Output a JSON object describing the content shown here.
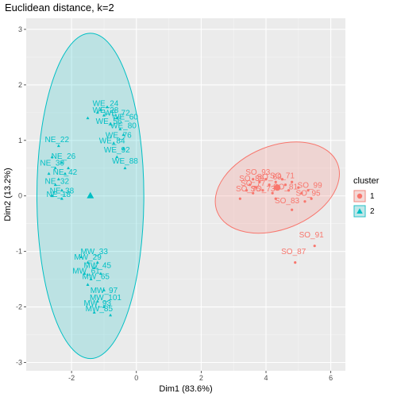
{
  "chart_data": {
    "type": "scatter",
    "title": "Euclidean distance, k=2",
    "xlabel": "Dim1 (83.6%)",
    "ylabel": "Dim2 (13.2%)",
    "xlim": [
      -3.4,
      6.45
    ],
    "ylim": [
      -3.15,
      3.2
    ],
    "xticks": [
      -2,
      0,
      2,
      4,
      6
    ],
    "yticks": [
      -3,
      -2,
      -1,
      0,
      1,
      2,
      3
    ],
    "grid": true,
    "legend_position": "right",
    "legend_title": "cluster",
    "colors": {
      "1": "#F8766D",
      "2": "#00BFC4"
    },
    "series": [
      {
        "name": "1",
        "shape": "circle",
        "ellipse": {
          "cx": 4.35,
          "cy": 0.15,
          "rx": 2.0,
          "ry": 0.75,
          "angle_deg": -22
        },
        "centroid": [
          4.35,
          0.15
        ],
        "points": [
          {
            "x": 3.2,
            "y": -0.05
          },
          {
            "x": 3.4,
            "y": 0.1
          },
          {
            "x": 3.5,
            "y": 0.2
          },
          {
            "x": 3.6,
            "y": 0.3
          },
          {
            "x": 3.7,
            "y": 0.15
          },
          {
            "x": 3.8,
            "y": 0.25
          },
          {
            "x": 3.9,
            "y": 0.1
          },
          {
            "x": 4.0,
            "y": 0.3
          },
          {
            "x": 4.1,
            "y": 0.2
          },
          {
            "x": 4.2,
            "y": 0.05
          },
          {
            "x": 4.3,
            "y": 0.25
          },
          {
            "x": 4.4,
            "y": 0.15
          },
          {
            "x": 4.5,
            "y": 0.3
          },
          {
            "x": 4.6,
            "y": 0.2
          },
          {
            "x": 4.7,
            "y": 0.1
          },
          {
            "x": 4.8,
            "y": 0.25
          },
          {
            "x": 5.0,
            "y": 0.15
          },
          {
            "x": 5.1,
            "y": 0.05
          },
          {
            "x": 5.3,
            "y": 0.1
          },
          {
            "x": 5.4,
            "y": -0.05
          },
          {
            "x": 5.2,
            "y": -0.1
          },
          {
            "x": 4.3,
            "y": -0.05
          },
          {
            "x": 3.6,
            "y": 0.05
          },
          {
            "x": 4.8,
            "y": -0.25
          },
          {
            "x": 5.5,
            "y": -0.9
          },
          {
            "x": 4.9,
            "y": -1.2
          }
        ],
        "labels": [
          {
            "text": "SO_93",
            "x": 3.75,
            "y": 0.38
          },
          {
            "text": "SO_89",
            "x": 3.55,
            "y": 0.27
          },
          {
            "text": "SO_71",
            "x": 4.5,
            "y": 0.32
          },
          {
            "text": "SO_69",
            "x": 4.1,
            "y": 0.3
          },
          {
            "text": "SO_77",
            "x": 3.6,
            "y": 0.18
          },
          {
            "text": "SO_75",
            "x": 3.45,
            "y": 0.08
          },
          {
            "text": "SO_99",
            "x": 5.35,
            "y": 0.15
          },
          {
            "text": "SO_95",
            "x": 5.3,
            "y": 0.0
          },
          {
            "text": "SO_73",
            "x": 3.9,
            "y": 0.08
          },
          {
            "text": "SO_81",
            "x": 4.6,
            "y": 0.12
          },
          {
            "text": "SO_83",
            "x": 4.65,
            "y": -0.13
          },
          {
            "text": "SO_91",
            "x": 5.4,
            "y": -0.75
          },
          {
            "text": "SO_87",
            "x": 4.85,
            "y": -1.05
          }
        ]
      },
      {
        "name": "2",
        "shape": "triangle",
        "ellipse": {
          "cx": -1.42,
          "cy": 0.0,
          "rx": 1.65,
          "ry": 2.93,
          "angle_deg": 0
        },
        "centroid": [
          -1.42,
          0.0
        ],
        "points": [
          {
            "x": -2.4,
            "y": 0.9
          },
          {
            "x": -2.6,
            "y": 0.7
          },
          {
            "x": -2.5,
            "y": 0.5
          },
          {
            "x": -2.3,
            "y": 0.6
          },
          {
            "x": -2.7,
            "y": 0.4
          },
          {
            "x": -2.4,
            "y": 0.3
          },
          {
            "x": -2.2,
            "y": 0.4
          },
          {
            "x": -2.5,
            "y": 0.2
          },
          {
            "x": -2.3,
            "y": 0.1
          },
          {
            "x": -2.6,
            "y": 0.0
          },
          {
            "x": -2.3,
            "y": -0.05
          },
          {
            "x": -2.1,
            "y": 0.5
          },
          {
            "x": -1.5,
            "y": 1.4
          },
          {
            "x": -1.2,
            "y": 1.5
          },
          {
            "x": -1.0,
            "y": 1.45
          },
          {
            "x": -0.8,
            "y": 1.3
          },
          {
            "x": -0.6,
            "y": 1.4
          },
          {
            "x": -0.5,
            "y": 1.2
          },
          {
            "x": -0.4,
            "y": 1.1
          },
          {
            "x": -0.7,
            "y": 0.95
          },
          {
            "x": -0.4,
            "y": 0.85
          },
          {
            "x": -0.6,
            "y": 0.7
          },
          {
            "x": -0.35,
            "y": 0.5
          },
          {
            "x": -1.1,
            "y": 1.55
          },
          {
            "x": -0.9,
            "y": 1.6
          },
          {
            "x": -1.7,
            "y": -1.1
          },
          {
            "x": -1.5,
            "y": -1.2
          },
          {
            "x": -1.3,
            "y": -1.3
          },
          {
            "x": -1.6,
            "y": -1.4
          },
          {
            "x": -1.4,
            "y": -1.5
          },
          {
            "x": -1.2,
            "y": -1.2
          },
          {
            "x": -1.1,
            "y": -1.4
          },
          {
            "x": -1.5,
            "y": -1.6
          },
          {
            "x": -1.0,
            "y": -1.7
          },
          {
            "x": -1.2,
            "y": -1.9
          },
          {
            "x": -1.0,
            "y": -2.0
          },
          {
            "x": -1.3,
            "y": -2.1
          },
          {
            "x": -0.8,
            "y": -2.15
          }
        ],
        "labels": [
          {
            "text": "WE_24",
            "x": -0.95,
            "y": 1.62
          },
          {
            "text": "WE_28",
            "x": -0.95,
            "y": 1.5
          },
          {
            "text": "WE_72",
            "x": -0.6,
            "y": 1.45
          },
          {
            "text": "WE_60",
            "x": -0.35,
            "y": 1.38
          },
          {
            "text": "WE_56",
            "x": -0.85,
            "y": 1.3
          },
          {
            "text": "WE_80",
            "x": -0.4,
            "y": 1.22
          },
          {
            "text": "WE_76",
            "x": -0.55,
            "y": 1.05
          },
          {
            "text": "WE_84",
            "x": -0.75,
            "y": 0.95
          },
          {
            "text": "WE_92",
            "x": -0.6,
            "y": 0.78
          },
          {
            "text": "WE_88",
            "x": -0.35,
            "y": 0.58
          },
          {
            "text": "NE_22",
            "x": -2.45,
            "y": 0.97
          },
          {
            "text": "NE_26",
            "x": -2.25,
            "y": 0.67
          },
          {
            "text": "NE_30",
            "x": -2.6,
            "y": 0.55
          },
          {
            "text": "NE_42",
            "x": -2.2,
            "y": 0.38
          },
          {
            "text": "NE_32",
            "x": -2.45,
            "y": 0.22
          },
          {
            "text": "NE_38",
            "x": -2.3,
            "y": 0.05
          },
          {
            "text": "NE_18",
            "x": -2.4,
            "y": -0.02
          },
          {
            "text": "MW_33",
            "x": -1.3,
            "y": -1.05
          },
          {
            "text": "MW_29",
            "x": -1.5,
            "y": -1.15
          },
          {
            "text": "MW_45",
            "x": -1.2,
            "y": -1.3
          },
          {
            "text": "MW_61",
            "x": -1.55,
            "y": -1.4
          },
          {
            "text": "MW_65",
            "x": -1.25,
            "y": -1.5
          },
          {
            "text": "MW_97",
            "x": -1.0,
            "y": -1.75
          },
          {
            "text": "MW_101",
            "x": -0.95,
            "y": -1.88
          },
          {
            "text": "MW_93",
            "x": -1.2,
            "y": -1.98
          },
          {
            "text": "MW_85",
            "x": -1.15,
            "y": -2.08
          }
        ]
      }
    ]
  }
}
